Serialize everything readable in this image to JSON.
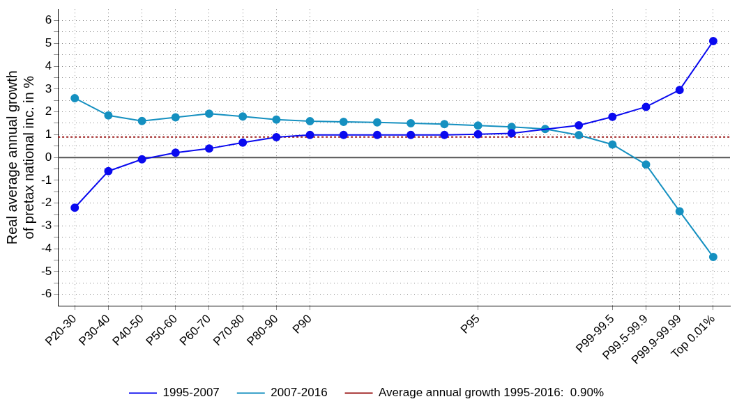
{
  "chart_data": {
    "type": "line",
    "ylabel": "Real average annual growth\nof pretax national inc. in %",
    "categories": [
      "P20-30",
      "P30-40",
      "P40-50",
      "P50-60",
      "P60-70",
      "P70-80",
      "P80-90",
      "P90",
      null,
      null,
      null,
      null,
      "P95",
      null,
      null,
      null,
      "P99-99.5",
      "P99.5-99.9",
      "P99.9-99.99",
      "Top 0.01%"
    ],
    "ylim": [
      -6.5,
      6.5
    ],
    "yticks": [
      -6,
      {
        "value": -5.5,
        "label": null
      },
      -5,
      {
        "value": -4.5,
        "label": null
      },
      -4,
      {
        "value": -3.5,
        "label": null
      },
      -3,
      {
        "value": -2.5,
        "label": null
      },
      -2,
      {
        "value": -1.5,
        "label": null
      },
      -1,
      {
        "value": -0.5,
        "label": null
      },
      0,
      {
        "value": 0.5,
        "label": null
      },
      1,
      {
        "value": 1.5,
        "label": null
      },
      2,
      {
        "value": 2.5,
        "label": null
      },
      3,
      {
        "value": 3.5,
        "label": null
      },
      4,
      {
        "value": 4.5,
        "label": null
      },
      5,
      {
        "value": 5.5,
        "label": null
      },
      6
    ],
    "series": [
      {
        "name": "1995-2007",
        "color": "#0a0aef",
        "values": [
          -2.2,
          -0.6,
          -0.08,
          0.21,
          0.39,
          0.65,
          0.89,
          0.99,
          0.99,
          0.99,
          0.99,
          0.99,
          1.02,
          1.06,
          null,
          1.41,
          1.78,
          2.22,
          2.96,
          5.1
        ]
      },
      {
        "name": "2007-2016",
        "color": "#1590c0",
        "values": [
          2.6,
          1.84,
          1.6,
          1.76,
          1.92,
          1.8,
          1.66,
          1.59,
          1.56,
          1.54,
          1.5,
          1.46,
          1.4,
          1.34,
          1.25,
          0.98,
          0.57,
          -0.31,
          -2.36,
          -4.36
        ]
      }
    ],
    "ref_lines": [
      {
        "axis": "y",
        "value": 0,
        "color": "#555555",
        "line_style": "solid"
      },
      {
        "axis": "y",
        "value": 0.9,
        "label": "Average annual growth 1995-2016:  0.90%",
        "color": "#9b1b1b",
        "line_style": "dotted"
      }
    ],
    "marker": "circle",
    "line_style": "solid",
    "grid": true,
    "legend": "bottom"
  }
}
